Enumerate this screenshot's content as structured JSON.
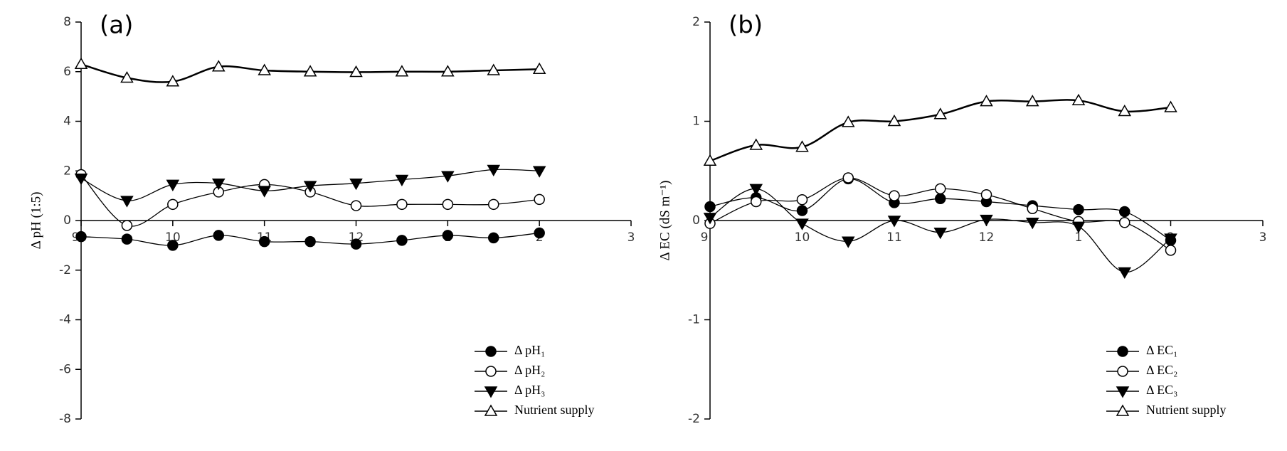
{
  "chart_data": [
    {
      "type": "line",
      "title": "(a)",
      "y_label": "Δ pH (1:5)",
      "x": [
        9,
        9.5,
        10,
        10.5,
        11,
        11.5,
        12,
        12.5,
        13,
        13.5,
        14
      ],
      "xlim": [
        9,
        15
      ],
      "xticks": [
        9,
        10,
        11,
        12,
        {
          "value": 13,
          "label": "1"
        },
        {
          "value": 14,
          "label": "2"
        },
        {
          "value": 15,
          "label": "3"
        }
      ],
      "ylim": [
        -8,
        8
      ],
      "yticks": [
        -8,
        -6,
        -4,
        -2,
        0,
        2,
        4,
        6,
        8
      ],
      "legend": "lower right",
      "series": [
        {
          "name": "Δ pH₁",
          "color": "#000000",
          "marker": "circle-filled",
          "values": [
            -0.65,
            -0.75,
            -1.0,
            -0.6,
            -0.85,
            -0.85,
            -0.95,
            -0.8,
            -0.6,
            -0.7,
            -0.5
          ]
        },
        {
          "name": "Δ pH₂",
          "color": "#000000",
          "marker": "circle-open",
          "values": [
            1.85,
            -0.2,
            0.65,
            1.15,
            1.45,
            1.15,
            0.6,
            0.65,
            0.65,
            0.65,
            0.85
          ]
        },
        {
          "name": "Δ pH₃",
          "color": "#000000",
          "marker": "triangle-down-filled",
          "values": [
            1.7,
            0.8,
            1.45,
            1.5,
            1.2,
            1.4,
            1.5,
            1.65,
            1.8,
            2.05,
            2.0
          ]
        },
        {
          "name": "Nutrient supply",
          "color": "#000000",
          "marker": "triangle-up-open",
          "values": [
            6.3,
            5.75,
            5.6,
            6.2,
            6.05,
            6.0,
            5.98,
            6.0,
            6.0,
            6.05,
            6.1
          ]
        }
      ]
    },
    {
      "type": "line",
      "title": "(b)",
      "y_label": "Δ EC (dS m⁻¹)",
      "x": [
        9,
        9.5,
        10,
        10.5,
        11,
        11.5,
        12,
        12.5,
        13,
        13.5,
        14
      ],
      "xlim": [
        9,
        15
      ],
      "xticks": [
        9,
        10,
        11,
        12,
        {
          "value": 13,
          "label": "1"
        },
        {
          "value": 14,
          "label": "2"
        },
        {
          "value": 15,
          "label": "3"
        }
      ],
      "ylim": [
        -2,
        2
      ],
      "yticks": [
        -2,
        -1,
        0,
        1,
        2
      ],
      "legend": "lower right",
      "series": [
        {
          "name": "Δ EC₁",
          "color": "#000000",
          "marker": "circle-filled",
          "values": [
            0.14,
            0.23,
            0.1,
            0.42,
            0.18,
            0.22,
            0.19,
            0.15,
            0.11,
            0.09,
            -0.2
          ]
        },
        {
          "name": "Δ EC₂",
          "color": "#000000",
          "marker": "circle-open",
          "values": [
            -0.03,
            0.19,
            0.21,
            0.43,
            0.25,
            0.32,
            0.26,
            0.12,
            -0.01,
            -0.02,
            -0.3
          ]
        },
        {
          "name": "Δ EC₃",
          "color": "#000000",
          "marker": "triangle-down-filled",
          "values": [
            0.03,
            0.32,
            -0.03,
            -0.21,
            0.0,
            -0.12,
            0.01,
            -0.02,
            -0.06,
            -0.52,
            -0.18
          ]
        },
        {
          "name": "Nutrient supply",
          "color": "#000000",
          "marker": "triangle-up-open",
          "values": [
            0.6,
            0.76,
            0.74,
            0.99,
            1.0,
            1.07,
            1.2,
            1.2,
            1.21,
            1.1,
            1.14
          ]
        }
      ]
    }
  ]
}
